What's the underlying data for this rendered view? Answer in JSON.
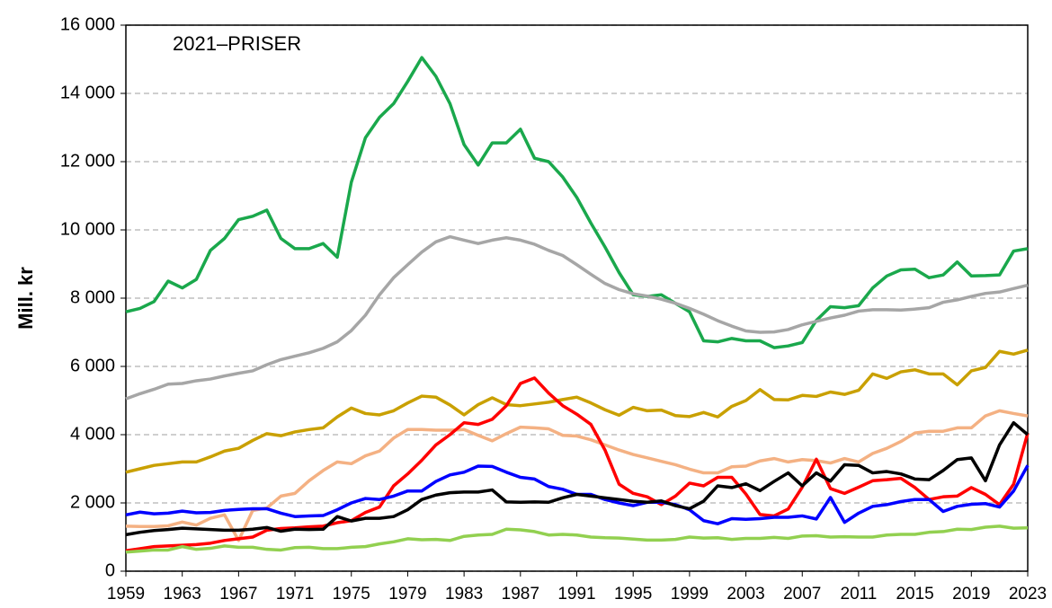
{
  "chart_data": {
    "type": "line",
    "annotation": "2021–PRISER",
    "y_label": "Mill. kr",
    "x": [
      1959,
      1960,
      1961,
      1962,
      1963,
      1964,
      1965,
      1966,
      1967,
      1968,
      1969,
      1970,
      1971,
      1972,
      1973,
      1974,
      1975,
      1976,
      1977,
      1978,
      1979,
      1980,
      1981,
      1982,
      1983,
      1984,
      1985,
      1986,
      1987,
      1988,
      1989,
      1990,
      1991,
      1992,
      1993,
      1994,
      1995,
      1996,
      1997,
      1998,
      1999,
      2000,
      2001,
      2002,
      2003,
      2004,
      2005,
      2006,
      2007,
      2008,
      2009,
      2010,
      2011,
      2012,
      2013,
      2014,
      2015,
      2016,
      2017,
      2018,
      2019,
      2020,
      2021,
      2022,
      2023
    ],
    "xlim": [
      1959,
      2023
    ],
    "xticks": [
      1959,
      1963,
      1967,
      1971,
      1975,
      1979,
      1983,
      1987,
      1991,
      1995,
      1999,
      2003,
      2007,
      2011,
      2015,
      2019,
      2023
    ],
    "ylim": [
      0,
      16000
    ],
    "yticks": [
      0,
      {
        "value": 2000,
        "label": "2 000"
      },
      {
        "value": 4000,
        "label": "4 000"
      },
      {
        "value": 6000,
        "label": "6 000"
      },
      {
        "value": 8000,
        "label": "8 000"
      },
      {
        "value": 10000,
        "label": "10 000"
      },
      {
        "value": 12000,
        "label": "12 000"
      },
      {
        "value": 14000,
        "label": "14 000"
      },
      {
        "value": 16000,
        "label": "16 000"
      }
    ],
    "grid": true,
    "series": [
      {
        "color": "#1aa84c",
        "values": [
          7600,
          7700,
          7900,
          8500,
          8300,
          8550,
          9400,
          9750,
          10300,
          10400,
          10580,
          9750,
          9450,
          9450,
          9600,
          9200,
          11400,
          12700,
          13300,
          13700,
          14350,
          15050,
          14500,
          13700,
          12500,
          11900,
          12550,
          12550,
          12950,
          12100,
          12000,
          11550,
          10950,
          10200,
          9500,
          8750,
          8100,
          8050,
          8100,
          7850,
          7600,
          6750,
          6720,
          6820,
          6750,
          6750,
          6550,
          6600,
          6700,
          7350,
          7750,
          7720,
          7780,
          8300,
          8650,
          8830,
          8850,
          8600,
          8680,
          9060,
          8650,
          8660,
          8680,
          9380,
          9450
        ]
      },
      {
        "color": "#a6a6a6",
        "values": [
          5050,
          5200,
          5330,
          5480,
          5500,
          5580,
          5630,
          5720,
          5800,
          5870,
          6050,
          6200,
          6300,
          6400,
          6530,
          6720,
          7050,
          7500,
          8100,
          8600,
          8980,
          9350,
          9650,
          9800,
          9700,
          9600,
          9700,
          9770,
          9700,
          9580,
          9400,
          9250,
          8980,
          8700,
          8430,
          8250,
          8130,
          8060,
          7970,
          7850,
          7700,
          7530,
          7340,
          7180,
          7040,
          7000,
          7010,
          7080,
          7220,
          7320,
          7420,
          7500,
          7620,
          7660,
          7660,
          7650,
          7680,
          7720,
          7880,
          7950,
          8050,
          8140,
          8180,
          8280,
          8380
        ]
      },
      {
        "color": "#c9a000",
        "values": [
          2900,
          3000,
          3100,
          3150,
          3200,
          3200,
          3350,
          3520,
          3600,
          3830,
          4030,
          3970,
          4080,
          4150,
          4200,
          4520,
          4780,
          4620,
          4580,
          4700,
          4930,
          5130,
          5100,
          4870,
          4580,
          4880,
          5080,
          4880,
          4850,
          4900,
          4950,
          5030,
          5100,
          4930,
          4730,
          4570,
          4800,
          4700,
          4720,
          4560,
          4530,
          4650,
          4520,
          4830,
          5000,
          5320,
          5030,
          5020,
          5150,
          5120,
          5250,
          5180,
          5300,
          5780,
          5650,
          5840,
          5900,
          5780,
          5780,
          5460,
          5870,
          5970,
          6440,
          6360,
          6480
        ]
      },
      {
        "color": "#f4b183",
        "values": [
          1320,
          1310,
          1310,
          1330,
          1440,
          1350,
          1550,
          1650,
          900,
          1780,
          1850,
          2200,
          2280,
          2650,
          2950,
          3200,
          3150,
          3380,
          3520,
          3900,
          4150,
          4150,
          4130,
          4130,
          4150,
          3980,
          3820,
          4030,
          4220,
          4200,
          4170,
          3980,
          3960,
          3850,
          3700,
          3550,
          3420,
          3320,
          3220,
          3120,
          2990,
          2880,
          2880,
          3060,
          3080,
          3230,
          3300,
          3200,
          3270,
          3240,
          3170,
          3300,
          3200,
          3450,
          3600,
          3800,
          4050,
          4100,
          4100,
          4200,
          4200,
          4550,
          4700,
          4620,
          4550
        ]
      },
      {
        "color": "#ff0000",
        "values": [
          600,
          660,
          720,
          740,
          760,
          780,
          820,
          900,
          950,
          1000,
          1200,
          1250,
          1270,
          1300,
          1320,
          1420,
          1480,
          1720,
          1880,
          2500,
          2850,
          3250,
          3700,
          4000,
          4350,
          4300,
          4450,
          4850,
          5500,
          5660,
          5220,
          4850,
          4600,
          4300,
          3550,
          2550,
          2280,
          2180,
          1950,
          2200,
          2580,
          2500,
          2750,
          2750,
          2260,
          1660,
          1620,
          1820,
          2460,
          3280,
          2420,
          2280,
          2460,
          2650,
          2680,
          2720,
          2450,
          2100,
          2180,
          2200,
          2450,
          2250,
          1950,
          2550,
          4050
        ]
      },
      {
        "color": "#0000ff",
        "values": [
          1650,
          1730,
          1680,
          1700,
          1760,
          1710,
          1720,
          1780,
          1810,
          1830,
          1830,
          1700,
          1600,
          1620,
          1630,
          1800,
          2000,
          2130,
          2100,
          2200,
          2350,
          2350,
          2630,
          2820,
          2900,
          3080,
          3070,
          2900,
          2750,
          2700,
          2480,
          2400,
          2250,
          2250,
          2100,
          2000,
          1920,
          2020,
          2020,
          1950,
          1800,
          1480,
          1390,
          1540,
          1520,
          1540,
          1580,
          1580,
          1620,
          1530,
          2160,
          1430,
          1700,
          1900,
          1950,
          2040,
          2100,
          2100,
          1750,
          1900,
          1960,
          1980,
          1880,
          2350,
          3100
        ]
      },
      {
        "color": "#000000",
        "values": [
          1070,
          1140,
          1190,
          1220,
          1260,
          1240,
          1220,
          1200,
          1200,
          1230,
          1280,
          1170,
          1230,
          1220,
          1230,
          1600,
          1470,
          1550,
          1550,
          1600,
          1800,
          2100,
          2230,
          2300,
          2320,
          2320,
          2380,
          2030,
          2020,
          2030,
          2020,
          2150,
          2250,
          2200,
          2150,
          2100,
          2050,
          2020,
          2060,
          1920,
          1830,
          2050,
          2500,
          2450,
          2560,
          2360,
          2630,
          2880,
          2500,
          2880,
          2640,
          3120,
          3100,
          2880,
          2920,
          2850,
          2700,
          2680,
          2950,
          3270,
          3320,
          2650,
          3700,
          4350,
          4000
        ]
      },
      {
        "color": "#92d050",
        "values": [
          560,
          590,
          620,
          620,
          720,
          640,
          670,
          740,
          700,
          700,
          640,
          620,
          690,
          700,
          660,
          660,
          700,
          720,
          800,
          860,
          950,
          920,
          930,
          900,
          1020,
          1060,
          1080,
          1230,
          1210,
          1160,
          1060,
          1080,
          1060,
          1000,
          980,
          970,
          940,
          910,
          910,
          930,
          1000,
          970,
          980,
          930,
          960,
          960,
          990,
          960,
          1030,
          1040,
          1000,
          1010,
          1000,
          1000,
          1060,
          1080,
          1080,
          1140,
          1160,
          1230,
          1220,
          1290,
          1320,
          1260,
          1270
        ]
      }
    ]
  }
}
